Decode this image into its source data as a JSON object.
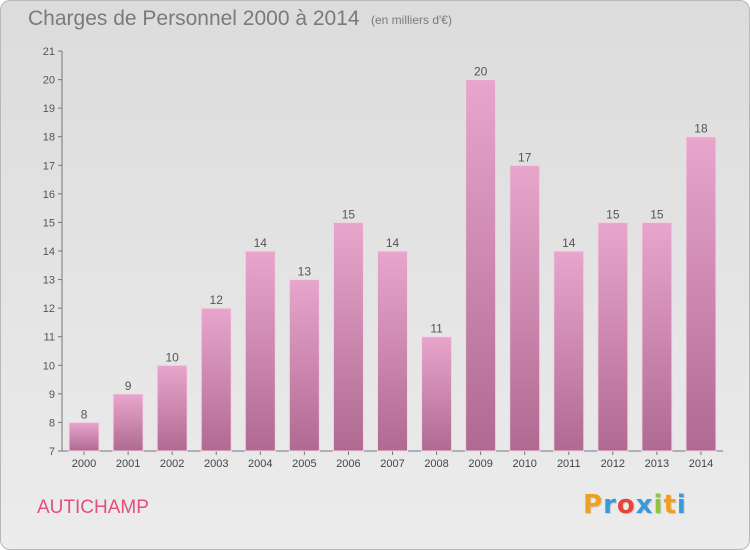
{
  "header": {
    "title": "Charges de Personnel 2000 à 2014",
    "subtitle": "(en milliers d'€)"
  },
  "footer": {
    "commune": "AUTICHAMP",
    "logo_letters": [
      "P",
      "r",
      "o",
      "x",
      "i",
      "t",
      "i"
    ],
    "logo_colors": [
      "#f0a020",
      "#3a9ad9",
      "#e8443a",
      "#3a9ad9",
      "#8cc63f",
      "#f0a020",
      "#3a9ad9"
    ]
  },
  "colors": {
    "bar_top": "#e8a6cc",
    "bar_bottom": "#b06a92",
    "commune": "#e0507a"
  },
  "chart_data": {
    "type": "bar",
    "categories": [
      "2000",
      "2001",
      "2002",
      "2003",
      "2004",
      "2005",
      "2006",
      "2007",
      "2008",
      "2009",
      "2010",
      "2011",
      "2012",
      "2013",
      "2014"
    ],
    "values": [
      8,
      9,
      10,
      12,
      14,
      13,
      15,
      14,
      11,
      20,
      17,
      14,
      15,
      15,
      18
    ],
    "yticks": [
      7,
      8,
      9,
      10,
      11,
      12,
      13,
      14,
      15,
      16,
      17,
      18,
      19,
      20,
      21
    ],
    "ylim": [
      7,
      21
    ],
    "grid": false,
    "data_labels": true
  }
}
